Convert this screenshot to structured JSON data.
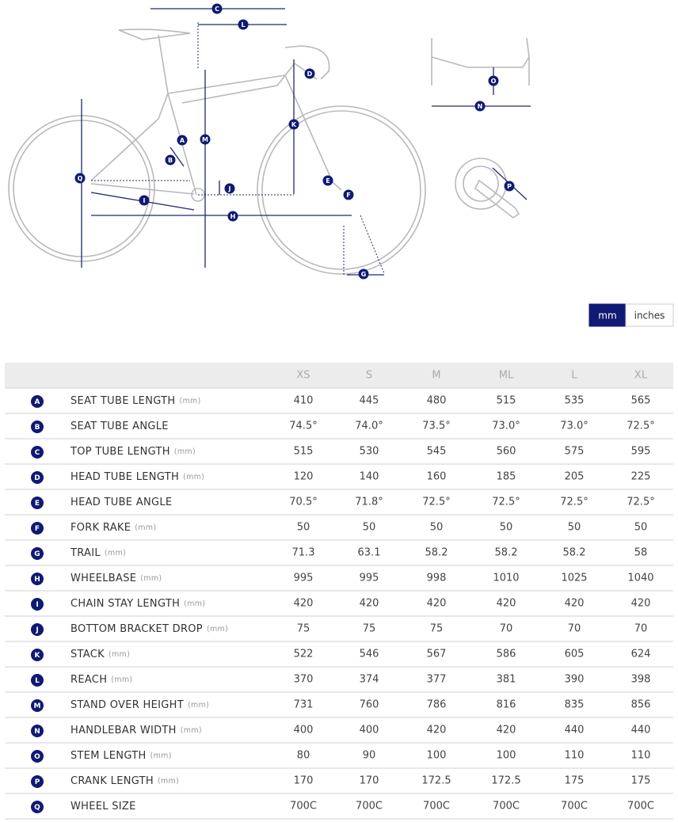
{
  "diagram": {
    "markers": [
      "C",
      "L",
      "D",
      "O",
      "N",
      "K",
      "M",
      "A",
      "B",
      "Q",
      "J",
      "E",
      "F",
      "I",
      "H",
      "P",
      "G"
    ]
  },
  "unit_toggle": {
    "options": [
      "mm",
      "inches"
    ]
  },
  "table": {
    "columns": [
      "XS",
      "S",
      "M",
      "ML",
      "L",
      "XL"
    ],
    "rows": [
      {
        "letter": "A",
        "name": "SEAT TUBE LENGTH",
        "unit": "(mm)",
        "values": [
          410,
          445,
          480,
          515,
          535,
          565
        ]
      },
      {
        "letter": "B",
        "name": "SEAT TUBE ANGLE",
        "values": [
          "74.5°",
          "74.0°",
          "73.5°",
          "73.0°",
          "73.0°",
          "72.5°"
        ]
      },
      {
        "letter": "C",
        "name": "TOP TUBE LENGTH",
        "unit": "(mm)",
        "values": [
          515,
          530,
          545,
          560,
          575,
          595
        ]
      },
      {
        "letter": "D",
        "name": "HEAD TUBE LENGTH",
        "unit": "(mm)",
        "values": [
          120,
          140,
          160,
          185,
          205,
          225
        ]
      },
      {
        "letter": "E",
        "name": "HEAD TUBE ANGLE",
        "values": [
          "70.5°",
          "71.8°",
          "72.5°",
          "72.5°",
          "72.5°",
          "72.5°"
        ]
      },
      {
        "letter": "F",
        "name": "FORK RAKE",
        "unit": "(mm)",
        "values": [
          50,
          50,
          50,
          50,
          50,
          50
        ]
      },
      {
        "letter": "G",
        "name": "TRAIL",
        "unit": "(mm)",
        "values": [
          71.3,
          63.1,
          58.2,
          58.2,
          58.2,
          58
        ]
      },
      {
        "letter": "H",
        "name": "WHEELBASE",
        "unit": "(mm)",
        "values": [
          995,
          995,
          998,
          1010,
          1025,
          1040
        ]
      },
      {
        "letter": "I",
        "name": "CHAIN STAY LENGTH",
        "unit": "(mm)",
        "values": [
          420,
          420,
          420,
          420,
          420,
          420
        ]
      },
      {
        "letter": "J",
        "name": "BOTTOM BRACKET DROP",
        "unit": "(mm)",
        "values": [
          75,
          75,
          75,
          70,
          70,
          70
        ]
      },
      {
        "letter": "K",
        "name": "STACK",
        "unit": "(mm)",
        "values": [
          522,
          546,
          567,
          586,
          605,
          624
        ]
      },
      {
        "letter": "L",
        "name": "REACH",
        "unit": "(mm)",
        "values": [
          370,
          374,
          377,
          381,
          390,
          398
        ]
      },
      {
        "letter": "M",
        "name": "STAND OVER HEIGHT",
        "unit": "(mm)",
        "values": [
          731,
          760,
          786,
          816,
          835,
          856
        ]
      },
      {
        "letter": "N",
        "name": "HANDLEBAR WIDTH",
        "unit": "(mm)",
        "values": [
          400,
          400,
          420,
          420,
          440,
          440
        ]
      },
      {
        "letter": "O",
        "name": "STEM LENGTH",
        "unit": "(mm)",
        "values": [
          80,
          90,
          100,
          100,
          110,
          110
        ]
      },
      {
        "letter": "P",
        "name": "CRANK LENGTH",
        "unit": "(mm)",
        "values": [
          170,
          170,
          172.5,
          172.5,
          175,
          175
        ]
      },
      {
        "letter": "Q",
        "name": "WHEEL SIZE",
        "values": [
          "700C",
          "700C",
          "700C",
          "700C",
          "700C",
          "700C"
        ]
      }
    ]
  }
}
